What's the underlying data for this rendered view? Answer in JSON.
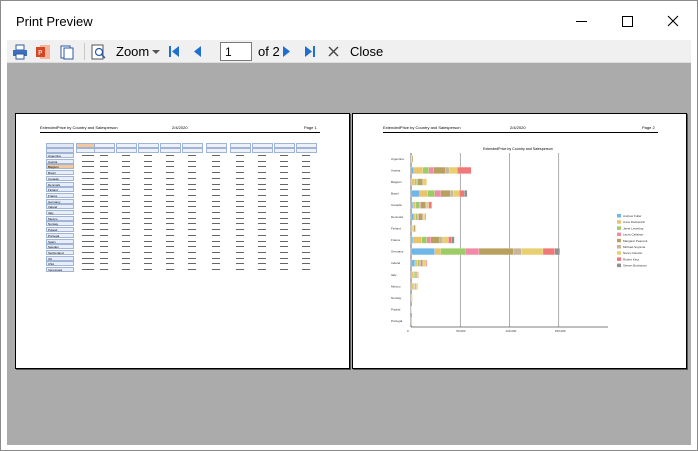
{
  "window": {
    "title": "Print Preview"
  },
  "toolbar": {
    "zoom_label": "Zoom",
    "page_current": "1",
    "page_of": "of 2",
    "close_label": "Close"
  },
  "page1": {
    "header_left": "ExtendedPrice by Country and Salesperson",
    "header_date": "2/4/2020",
    "header_right": "Page 1",
    "countries": [
      "Argentina",
      "Austria",
      "Belgium",
      "Brazil",
      "Canada",
      "Denmark",
      "Finland",
      "France",
      "Germany",
      "Ireland",
      "Italy",
      "Mexico",
      "Norway",
      "Poland",
      "Portugal",
      "Spain",
      "Sweden",
      "Switzerland",
      "UK",
      "USA",
      "Venezuela"
    ]
  },
  "page2": {
    "header_left": "ExtendedPrice by Country and Salesperson",
    "header_date": "2/4/2020",
    "header_right": "Page 2",
    "chart_title": "ExtendedPrice by Country and Salesperson"
  },
  "chart_data": {
    "type": "bar",
    "title": "ExtendedPrice by Country and Salesperson",
    "categories": [
      "Argentina",
      "Austria",
      "Belgium",
      "Brazil",
      "Canada",
      "Denmark",
      "Finland",
      "France",
      "Germany",
      "Ireland",
      "Italy",
      "Mexico",
      "Norway",
      "Poland",
      "Portugal"
    ],
    "series": [
      {
        "name": "Andrew Fuller",
        "color": "#6fb7e8",
        "values": [
          0,
          3000,
          0,
          9000,
          2000,
          3000,
          1000,
          2000,
          24000,
          4000,
          1000,
          1000,
          0,
          0,
          0
        ]
      },
      {
        "name": "Anne Dodsworth",
        "color": "#e9c46a",
        "values": [
          500,
          9000,
          4000,
          8000,
          3000,
          2000,
          1000,
          9000,
          6000,
          3000,
          2000,
          1500,
          500,
          300,
          500
        ]
      },
      {
        "name": "Janet Leverling",
        "color": "#9ccc65",
        "values": [
          0,
          6000,
          2000,
          7000,
          4000,
          2000,
          500,
          5000,
          25000,
          2000,
          1000,
          1000,
          0,
          0,
          0
        ]
      },
      {
        "name": "Laura Callahan",
        "color": "#f08aa8",
        "values": [
          500,
          5000,
          1000,
          6000,
          1000,
          1000,
          500,
          4000,
          14000,
          1000,
          500,
          500,
          300,
          200,
          0
        ]
      },
      {
        "name": "Margaret Peacock",
        "color": "#b8a060",
        "values": [
          1000,
          12000,
          5000,
          10000,
          5000,
          4000,
          1500,
          9000,
          35000,
          2000,
          1500,
          1000,
          500,
          300,
          500
        ]
      },
      {
        "name": "Michael Suyama",
        "color": "#c9b59a",
        "values": [
          0,
          4000,
          1000,
          3000,
          1000,
          500,
          300,
          3000,
          8000,
          1000,
          500,
          500,
          0,
          0,
          0
        ]
      },
      {
        "name": "Nancy Davolio",
        "color": "#e8d070",
        "values": [
          0,
          8000,
          3000,
          6000,
          2000,
          1500,
          500,
          6000,
          22000,
          2000,
          1000,
          1000,
          500,
          200,
          200
        ]
      },
      {
        "name": "Robert King",
        "color": "#f07878",
        "values": [
          0,
          14000,
          0,
          5000,
          3000,
          1000,
          0,
          3000,
          12000,
          1000,
          500,
          500,
          0,
          0,
          0
        ]
      },
      {
        "name": "Steven Buchanan",
        "color": "#909090",
        "values": [
          0,
          0,
          0,
          3000,
          0,
          0,
          0,
          3000,
          5000,
          0,
          0,
          0,
          0,
          0,
          0
        ]
      }
    ],
    "xticks": [
      "0",
      "50,000",
      "100,000",
      "150,000"
    ],
    "xlim": [
      0,
      200000
    ]
  }
}
